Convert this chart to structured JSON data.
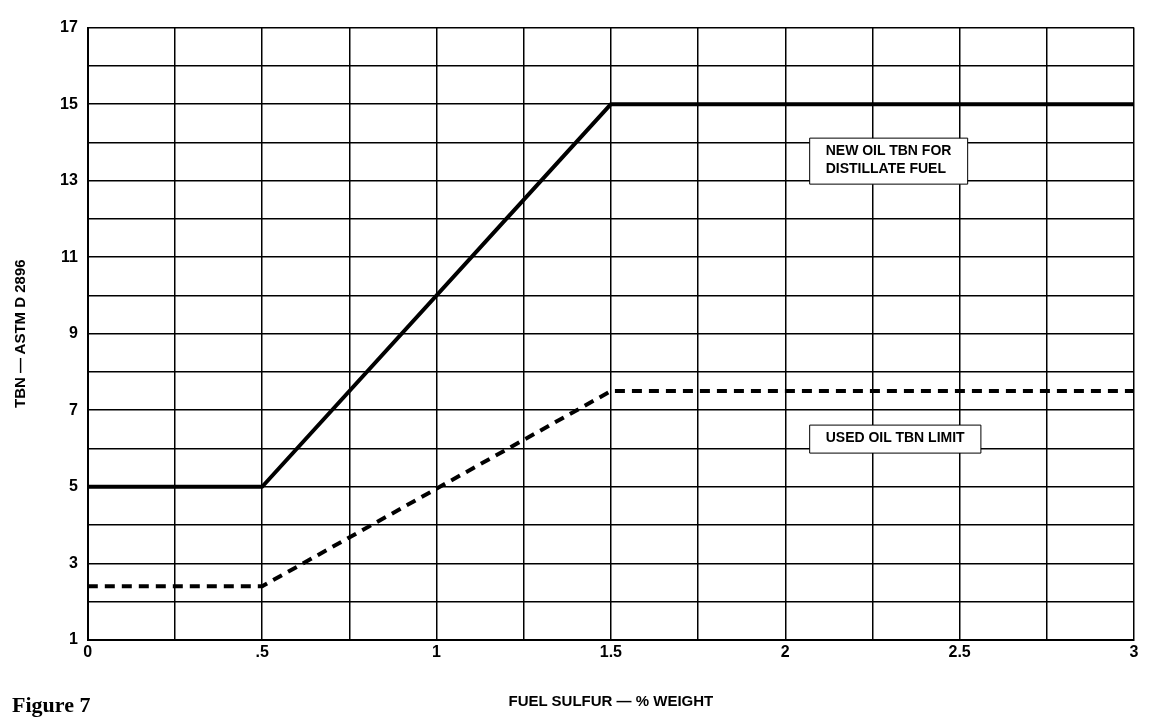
{
  "chart_data": {
    "type": "line",
    "xlabel": "FUEL SULFUR — % WEIGHT",
    "ylabel": "TBN — ASTM D 2896",
    "x": [
      0,
      0.5,
      1.5,
      3
    ],
    "series": [
      {
        "name": "NEW OIL TBN FOR DISTILLATE FUEL",
        "color": "#000000",
        "values": [
          5,
          5,
          15,
          15
        ],
        "line_style": "solid"
      },
      {
        "name": "USED OIL TBN LIMIT",
        "color": "#000000",
        "values": [
          2.4,
          2.4,
          7.5,
          7.5
        ],
        "line_style": "dashed"
      }
    ],
    "xlim": [
      0,
      3
    ],
    "xticks": [
      0,
      {
        "value": 0.25,
        "label": null
      },
      {
        "value": 0.5,
        "label": ".5"
      },
      {
        "value": 0.75,
        "label": null
      },
      1,
      {
        "value": 1.25,
        "label": null
      },
      1.5,
      {
        "value": 1.75,
        "label": null
      },
      2,
      {
        "value": 2.25,
        "label": null
      },
      2.5,
      {
        "value": 2.75,
        "label": null
      },
      3
    ],
    "ylim": [
      1,
      17
    ],
    "yticks": [
      1,
      {
        "value": 2,
        "label": null
      },
      3,
      {
        "value": 4,
        "label": null
      },
      5,
      {
        "value": 6,
        "label": null
      },
      7,
      {
        "value": 8,
        "label": null
      },
      9,
      {
        "value": 10,
        "label": null
      },
      11,
      {
        "value": 12,
        "label": null
      },
      13,
      {
        "value": 14,
        "label": null
      },
      15,
      {
        "value": 16,
        "label": null
      },
      17
    ],
    "grid": true,
    "legend": false,
    "marker": "none",
    "annotations": [
      "Figure 7"
    ]
  }
}
